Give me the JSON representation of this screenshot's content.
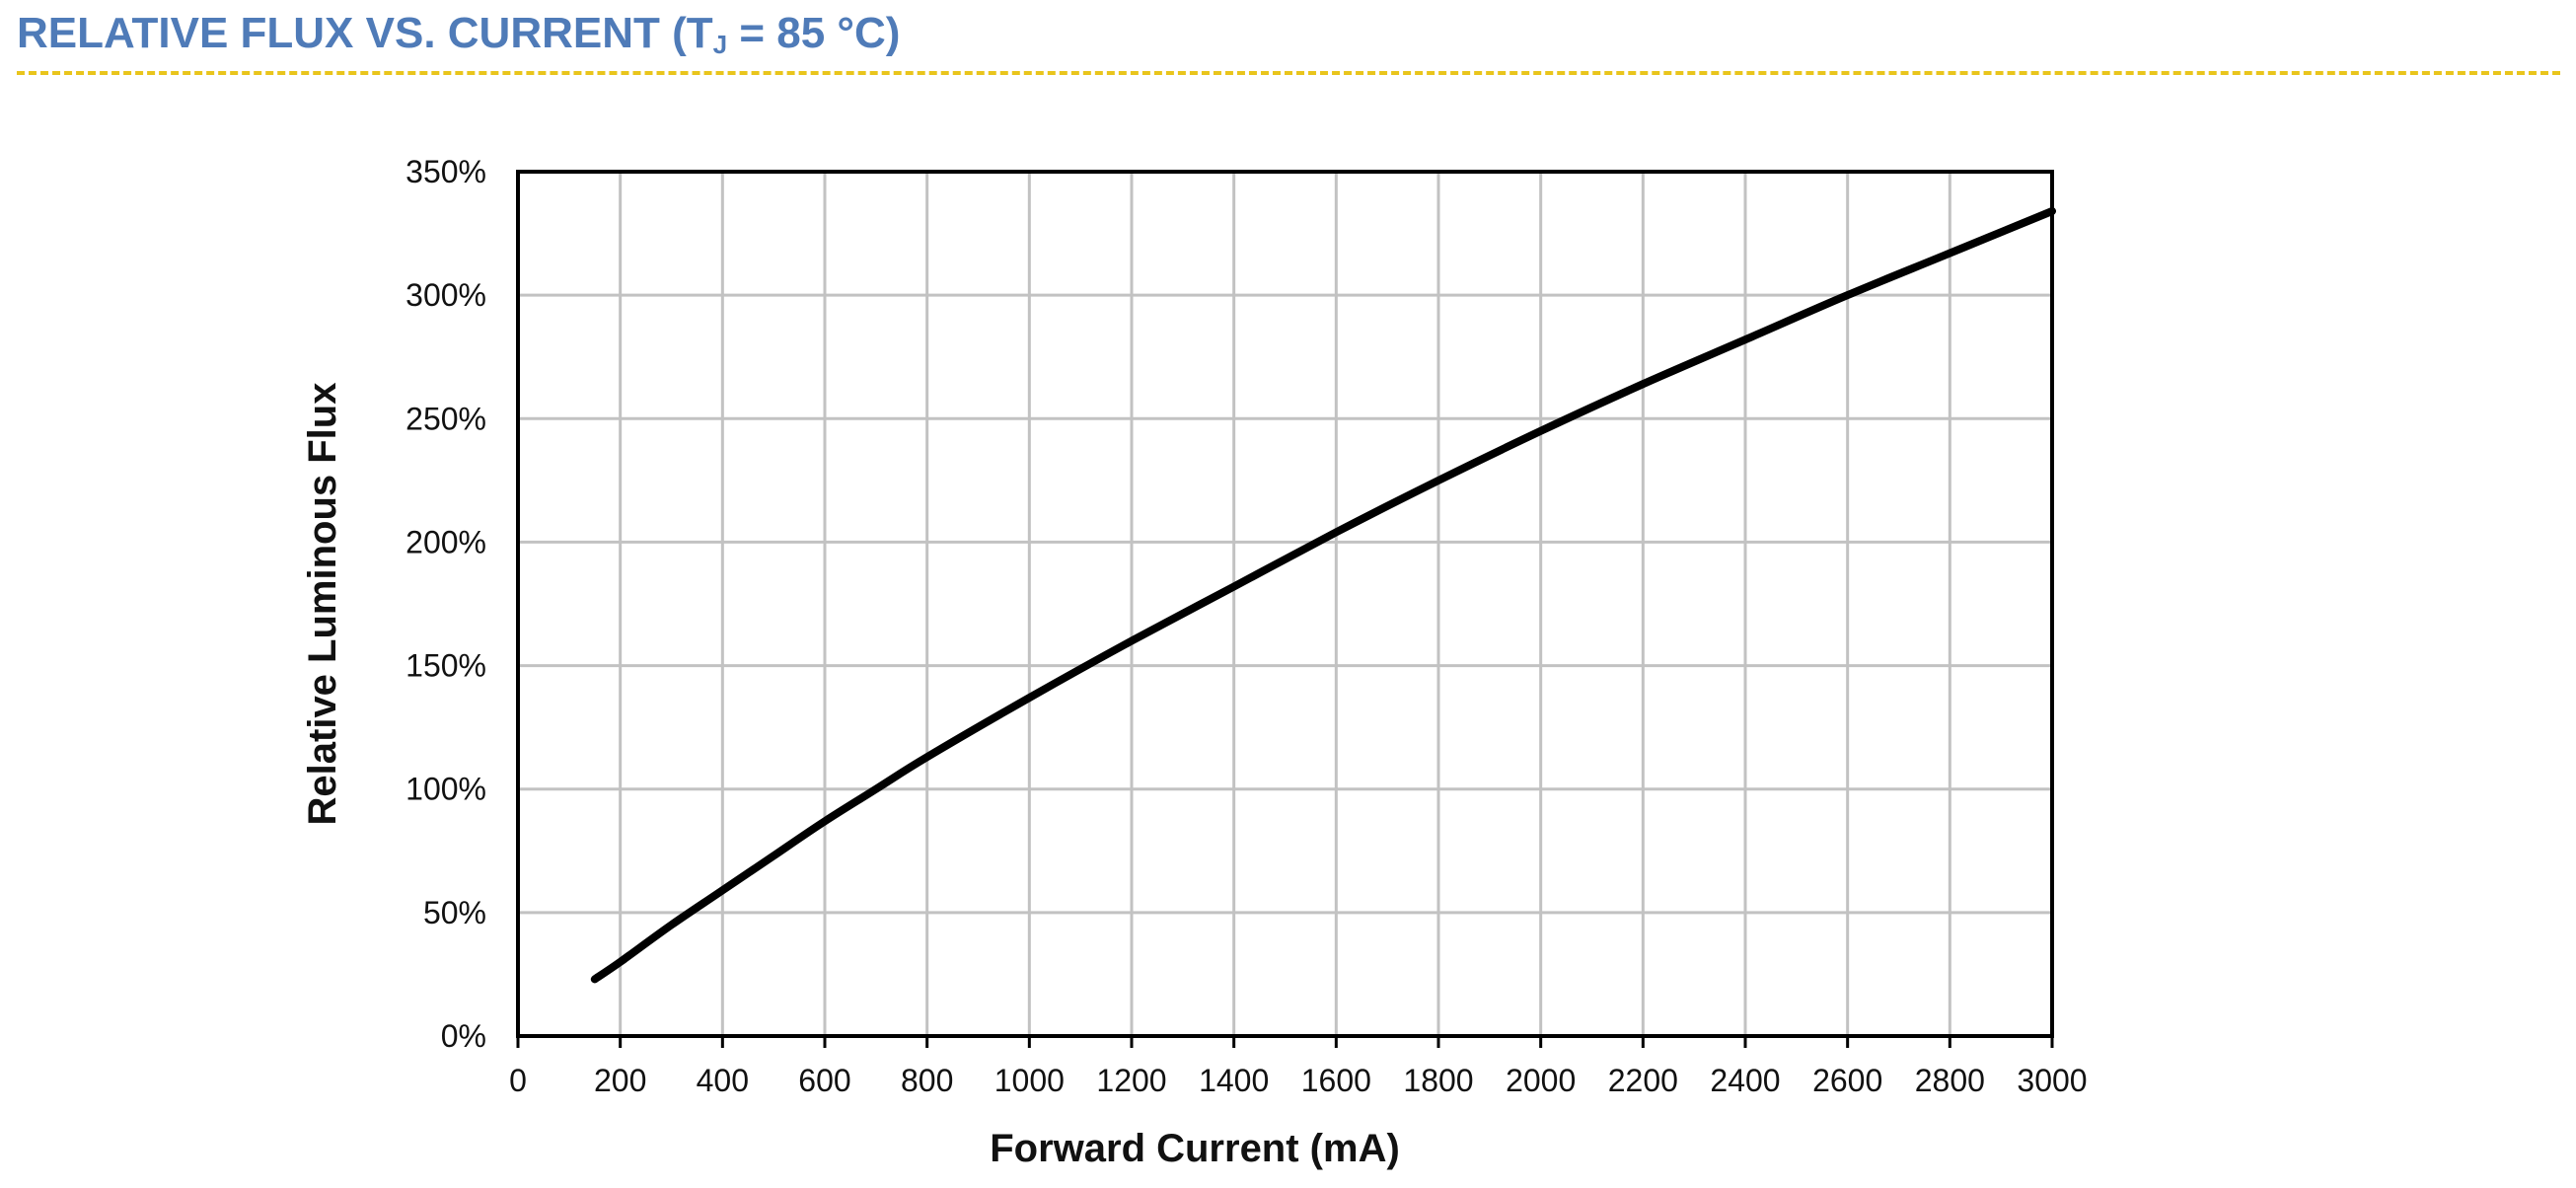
{
  "header": {
    "title_prefix": "RELATIVE FLUX VS. CURRENT (T",
    "title_sub": "J",
    "title_suffix": " = 85 °C)",
    "title_color": "#4f7bb8",
    "rule_color": "#e9c51c"
  },
  "chart_data": {
    "type": "line",
    "xlabel": "Forward Current (mA)",
    "ylabel": "Relative Luminous Flux",
    "xlim": [
      0,
      3000
    ],
    "ylim": [
      0,
      350
    ],
    "x_ticks": [
      0,
      200,
      400,
      600,
      800,
      1000,
      1200,
      1400,
      1600,
      1800,
      2000,
      2200,
      2400,
      2600,
      2800,
      3000
    ],
    "y_ticks": [
      0,
      50,
      100,
      150,
      200,
      250,
      300,
      350
    ],
    "y_tick_labels": [
      "0%",
      "50%",
      "100%",
      "150%",
      "200%",
      "250%",
      "300%",
      "350%"
    ],
    "grid": true,
    "line_color": "#000000",
    "series": [
      {
        "x": [
          150,
          200,
          300,
          400,
          500,
          600,
          700,
          800,
          1000,
          1200,
          1400,
          1600,
          1800,
          2000,
          2200,
          2400,
          2600,
          2800,
          3000
        ],
        "y": [
          23,
          30,
          45,
          59,
          73,
          87,
          100,
          113,
          137,
          160,
          182,
          204,
          225,
          245,
          264,
          282,
          300,
          317,
          334
        ]
      }
    ]
  }
}
